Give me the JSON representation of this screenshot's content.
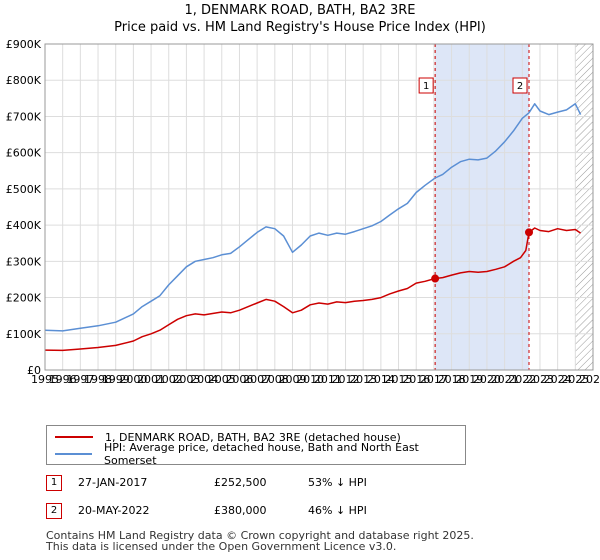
{
  "chart_data": {
    "type": "line",
    "title": "1, DENMARK ROAD, BATH, BA2 3RE",
    "subtitle": "Price paid vs. HM Land Registry's House Price Index (HPI)",
    "xlim": [
      1995,
      2026
    ],
    "ylim": [
      0,
      900000
    ],
    "x_ticks": [
      "1995",
      "1996",
      "1997",
      "1998",
      "1999",
      "2000",
      "2001",
      "2002",
      "2003",
      "2004",
      "2005",
      "2006",
      "2007",
      "2008",
      "2009",
      "2010",
      "2011",
      "2012",
      "2013",
      "2014",
      "2015",
      "2016",
      "2017",
      "2018",
      "2019",
      "2020",
      "2021",
      "2022",
      "2023",
      "2024",
      "2025",
      "2026"
    ],
    "y_ticks": [
      {
        "value": 0,
        "label": "£0"
      },
      {
        "value": 100000,
        "label": "£100K"
      },
      {
        "value": 200000,
        "label": "£200K"
      },
      {
        "value": 300000,
        "label": "£300K"
      },
      {
        "value": 400000,
        "label": "£400K"
      },
      {
        "value": 500000,
        "label": "£500K"
      },
      {
        "value": 600000,
        "label": "£600K"
      },
      {
        "value": 700000,
        "label": "£700K"
      },
      {
        "value": 800000,
        "label": "£800K"
      },
      {
        "value": 900000,
        "label": "£900K"
      }
    ],
    "colors": {
      "property": "#cc0000",
      "hpi": "#5b8fd4",
      "band": "#dde6f7",
      "grid": "#dddddd"
    },
    "series": [
      {
        "name": "1, DENMARK ROAD, BATH, BA2 3RE (detached house)",
        "color": "#cc0000",
        "points": [
          [
            1995.0,
            55000
          ],
          [
            1996.0,
            54000
          ],
          [
            1997.0,
            58000
          ],
          [
            1998.0,
            62000
          ],
          [
            1999.0,
            68000
          ],
          [
            2000.0,
            80000
          ],
          [
            2000.5,
            92000
          ],
          [
            2001.0,
            100000
          ],
          [
            2001.5,
            110000
          ],
          [
            2002.0,
            125000
          ],
          [
            2002.5,
            140000
          ],
          [
            2003.0,
            150000
          ],
          [
            2003.5,
            155000
          ],
          [
            2004.0,
            152000
          ],
          [
            2005.0,
            160000
          ],
          [
            2005.5,
            158000
          ],
          [
            2006.0,
            165000
          ],
          [
            2006.5,
            175000
          ],
          [
            2007.0,
            185000
          ],
          [
            2007.5,
            195000
          ],
          [
            2008.0,
            190000
          ],
          [
            2008.5,
            175000
          ],
          [
            2009.0,
            158000
          ],
          [
            2009.5,
            165000
          ],
          [
            2010.0,
            180000
          ],
          [
            2010.5,
            185000
          ],
          [
            2011.0,
            182000
          ],
          [
            2011.5,
            188000
          ],
          [
            2012.0,
            186000
          ],
          [
            2012.5,
            190000
          ],
          [
            2013.0,
            192000
          ],
          [
            2013.5,
            195000
          ],
          [
            2014.0,
            200000
          ],
          [
            2014.5,
            210000
          ],
          [
            2015.0,
            218000
          ],
          [
            2015.5,
            225000
          ],
          [
            2016.0,
            240000
          ],
          [
            2016.5,
            245000
          ],
          [
            2017.07,
            252500
          ],
          [
            2017.5,
            255000
          ],
          [
            2018.0,
            262000
          ],
          [
            2018.5,
            268000
          ],
          [
            2019.0,
            272000
          ],
          [
            2019.5,
            270000
          ],
          [
            2020.0,
            272000
          ],
          [
            2020.5,
            278000
          ],
          [
            2021.0,
            285000
          ],
          [
            2021.5,
            300000
          ],
          [
            2021.9,
            310000
          ],
          [
            2022.2,
            330000
          ],
          [
            2022.38,
            380000
          ],
          [
            2022.7,
            392000
          ],
          [
            2023.0,
            385000
          ],
          [
            2023.5,
            382000
          ],
          [
            2024.0,
            390000
          ],
          [
            2024.5,
            385000
          ],
          [
            2025.0,
            388000
          ],
          [
            2025.3,
            378000
          ]
        ]
      },
      {
        "name": "HPI: Average price, detached house, Bath and North East Somerset",
        "color": "#5b8fd4",
        "points": [
          [
            1995.0,
            110000
          ],
          [
            1996.0,
            108000
          ],
          [
            1997.0,
            115000
          ],
          [
            1998.0,
            122000
          ],
          [
            1999.0,
            132000
          ],
          [
            2000.0,
            155000
          ],
          [
            2000.5,
            175000
          ],
          [
            2001.0,
            190000
          ],
          [
            2001.5,
            205000
          ],
          [
            2002.0,
            235000
          ],
          [
            2002.5,
            260000
          ],
          [
            2003.0,
            285000
          ],
          [
            2003.5,
            300000
          ],
          [
            2004.0,
            305000
          ],
          [
            2004.5,
            310000
          ],
          [
            2005.0,
            318000
          ],
          [
            2005.5,
            322000
          ],
          [
            2006.0,
            340000
          ],
          [
            2006.5,
            360000
          ],
          [
            2007.0,
            380000
          ],
          [
            2007.5,
            395000
          ],
          [
            2008.0,
            390000
          ],
          [
            2008.5,
            370000
          ],
          [
            2009.0,
            325000
          ],
          [
            2009.5,
            345000
          ],
          [
            2010.0,
            370000
          ],
          [
            2010.5,
            378000
          ],
          [
            2011.0,
            372000
          ],
          [
            2011.5,
            378000
          ],
          [
            2012.0,
            375000
          ],
          [
            2012.5,
            382000
          ],
          [
            2013.0,
            390000
          ],
          [
            2013.5,
            398000
          ],
          [
            2014.0,
            410000
          ],
          [
            2014.5,
            428000
          ],
          [
            2015.0,
            445000
          ],
          [
            2015.5,
            460000
          ],
          [
            2016.0,
            490000
          ],
          [
            2016.5,
            510000
          ],
          [
            2017.07,
            530000
          ],
          [
            2017.5,
            540000
          ],
          [
            2018.0,
            560000
          ],
          [
            2018.5,
            575000
          ],
          [
            2019.0,
            582000
          ],
          [
            2019.5,
            580000
          ],
          [
            2020.0,
            585000
          ],
          [
            2020.5,
            605000
          ],
          [
            2021.0,
            630000
          ],
          [
            2021.5,
            660000
          ],
          [
            2022.0,
            695000
          ],
          [
            2022.38,
            710000
          ],
          [
            2022.7,
            735000
          ],
          [
            2023.0,
            715000
          ],
          [
            2023.5,
            705000
          ],
          [
            2024.0,
            712000
          ],
          [
            2024.5,
            718000
          ],
          [
            2025.0,
            735000
          ],
          [
            2025.3,
            705000
          ]
        ]
      }
    ],
    "sales": [
      {
        "id": "1",
        "x": 2017.07,
        "y": 252500
      },
      {
        "id": "2",
        "x": 2022.38,
        "y": 380000
      }
    ],
    "shaded_band": [
      2017.07,
      2022.38
    ],
    "hatched_region": [
      2025.0,
      2026.0
    ]
  },
  "legend": {
    "property_label": "1, DENMARK ROAD, BATH, BA2 3RE (detached house)",
    "hpi_label": "HPI: Average price, detached house, Bath and North East Somerset"
  },
  "annotations": [
    {
      "id": "1",
      "date": "27-JAN-2017",
      "price": "£252,500",
      "hpi": "53% ↓ HPI"
    },
    {
      "id": "2",
      "date": "20-MAY-2022",
      "price": "£380,000",
      "hpi": "46% ↓ HPI"
    }
  ],
  "footer": {
    "line1": "Contains HM Land Registry data © Crown copyright and database right 2025.",
    "line2": "This data is licensed under the Open Government Licence v3.0."
  }
}
